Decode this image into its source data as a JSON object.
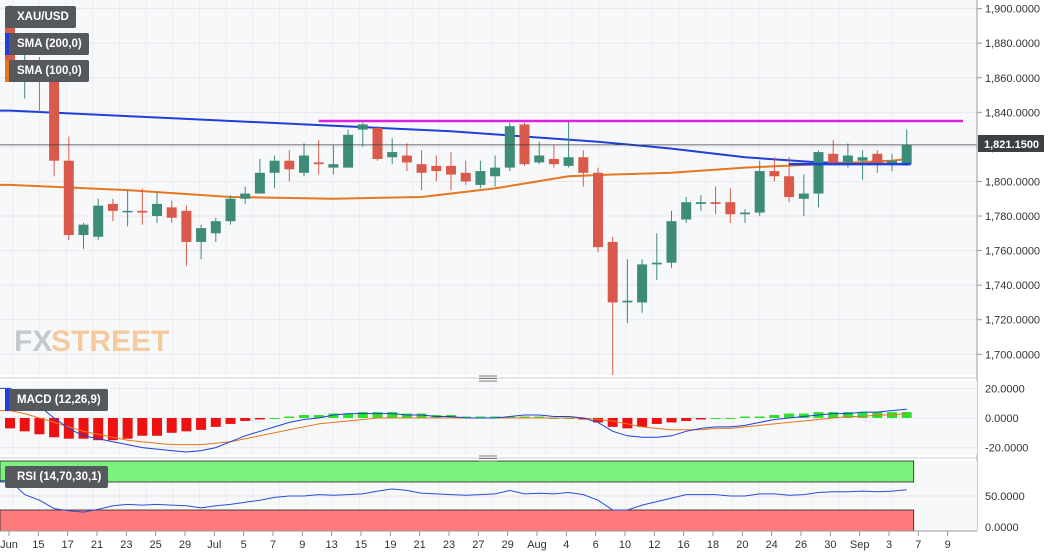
{
  "symbol": "XAU/USD",
  "indicators": {
    "sma200": {
      "label": "SMA (200,0)",
      "color": "#1f3fd6"
    },
    "sma100": {
      "label": "SMA (100,0)",
      "color": "#e8761f"
    },
    "macd": {
      "label": "MACD (12,26,9)"
    },
    "rsi": {
      "label": "RSI (14,70,30,1)"
    }
  },
  "price_tag": "1,821.1500",
  "watermark": {
    "fx": "FX",
    "street": "STREET"
  },
  "chart_data": [
    {
      "type": "candlestick",
      "title": "XAU/USD",
      "ylim": [
        1688,
        1905
      ],
      "yticks": [
        1700,
        1720,
        1740,
        1760,
        1780,
        1800,
        1820,
        1840,
        1860,
        1880,
        1900
      ],
      "ytick_labels": [
        "1,700.0000",
        "1,720.0000",
        "1,740.0000",
        "1,760.0000",
        "1,780.0000",
        "1,800.0000",
        "1,820.0000",
        "1,840.0000",
        "1,860.0000",
        "1,880.0000",
        "1,900.0000"
      ],
      "x_tick_labels": [
        "Jun",
        "15",
        "17",
        "21",
        "23",
        "25",
        "29",
        "Jul",
        "5",
        "7",
        "9",
        "13",
        "15",
        "19",
        "21",
        "23",
        "27",
        "29",
        "Aug",
        "4",
        "6",
        "10",
        "12",
        "16",
        "18",
        "20",
        "24",
        "26",
        "30",
        "Sep",
        "3",
        "7",
        "9"
      ],
      "candles": [
        {
          "o": 1900,
          "h": 1902,
          "l": 1860,
          "c": 1865
        },
        {
          "o": 1865,
          "h": 1880,
          "l": 1848,
          "c": 1870
        },
        {
          "o": 1868,
          "h": 1872,
          "l": 1840,
          "c": 1862
        },
        {
          "o": 1862,
          "h": 1862,
          "l": 1803,
          "c": 1812
        },
        {
          "o": 1812,
          "h": 1826,
          "l": 1766,
          "c": 1769
        },
        {
          "o": 1769,
          "h": 1776,
          "l": 1761,
          "c": 1775
        },
        {
          "o": 1768,
          "h": 1790,
          "l": 1766,
          "c": 1786
        },
        {
          "o": 1787,
          "h": 1790,
          "l": 1777,
          "c": 1783
        },
        {
          "o": 1783,
          "h": 1795,
          "l": 1774,
          "c": 1783
        },
        {
          "o": 1783,
          "h": 1796,
          "l": 1775,
          "c": 1782
        },
        {
          "o": 1780,
          "h": 1794,
          "l": 1776,
          "c": 1787
        },
        {
          "o": 1785,
          "h": 1789,
          "l": 1776,
          "c": 1779
        },
        {
          "o": 1783,
          "h": 1786,
          "l": 1751,
          "c": 1765
        },
        {
          "o": 1765,
          "h": 1775,
          "l": 1755,
          "c": 1773
        },
        {
          "o": 1770,
          "h": 1779,
          "l": 1765,
          "c": 1777
        },
        {
          "o": 1777,
          "h": 1792,
          "l": 1775,
          "c": 1790
        },
        {
          "o": 1790,
          "h": 1797,
          "l": 1787,
          "c": 1793
        },
        {
          "o": 1793,
          "h": 1813,
          "l": 1793,
          "c": 1805
        },
        {
          "o": 1805,
          "h": 1815,
          "l": 1796,
          "c": 1812
        },
        {
          "o": 1812,
          "h": 1818,
          "l": 1800,
          "c": 1807
        },
        {
          "o": 1805,
          "h": 1822,
          "l": 1803,
          "c": 1815
        },
        {
          "o": 1811,
          "h": 1824,
          "l": 1804,
          "c": 1810
        },
        {
          "o": 1808,
          "h": 1821,
          "l": 1804,
          "c": 1810
        },
        {
          "o": 1808,
          "h": 1830,
          "l": 1808,
          "c": 1827
        },
        {
          "o": 1830,
          "h": 1834,
          "l": 1820,
          "c": 1833
        },
        {
          "o": 1831,
          "h": 1832,
          "l": 1812,
          "c": 1813
        },
        {
          "o": 1814,
          "h": 1825,
          "l": 1810,
          "c": 1817
        },
        {
          "o": 1815,
          "h": 1822,
          "l": 1806,
          "c": 1811
        },
        {
          "o": 1810,
          "h": 1818,
          "l": 1795,
          "c": 1805
        },
        {
          "o": 1809,
          "h": 1815,
          "l": 1800,
          "c": 1806
        },
        {
          "o": 1809,
          "h": 1817,
          "l": 1795,
          "c": 1804
        },
        {
          "o": 1805,
          "h": 1812,
          "l": 1798,
          "c": 1800
        },
        {
          "o": 1798,
          "h": 1812,
          "l": 1796,
          "c": 1806
        },
        {
          "o": 1803,
          "h": 1815,
          "l": 1797,
          "c": 1808
        },
        {
          "o": 1808,
          "h": 1834,
          "l": 1806,
          "c": 1832
        },
        {
          "o": 1833,
          "h": 1834,
          "l": 1809,
          "c": 1810
        },
        {
          "o": 1811,
          "h": 1823,
          "l": 1810,
          "c": 1815
        },
        {
          "o": 1813,
          "h": 1821,
          "l": 1808,
          "c": 1810
        },
        {
          "o": 1809,
          "h": 1835,
          "l": 1808,
          "c": 1814
        },
        {
          "o": 1814,
          "h": 1818,
          "l": 1797,
          "c": 1805
        },
        {
          "o": 1805,
          "h": 1808,
          "l": 1759,
          "c": 1762
        },
        {
          "o": 1765,
          "h": 1768,
          "l": 1688,
          "c": 1730
        },
        {
          "o": 1730,
          "h": 1755,
          "l": 1718,
          "c": 1731
        },
        {
          "o": 1730,
          "h": 1755,
          "l": 1724,
          "c": 1752
        },
        {
          "o": 1752,
          "h": 1770,
          "l": 1743,
          "c": 1753
        },
        {
          "o": 1753,
          "h": 1783,
          "l": 1750,
          "c": 1777
        },
        {
          "o": 1778,
          "h": 1791,
          "l": 1776,
          "c": 1788
        },
        {
          "o": 1787,
          "h": 1792,
          "l": 1783,
          "c": 1788
        },
        {
          "o": 1788,
          "h": 1797,
          "l": 1781,
          "c": 1787
        },
        {
          "o": 1788,
          "h": 1796,
          "l": 1776,
          "c": 1781
        },
        {
          "o": 1781,
          "h": 1784,
          "l": 1776,
          "c": 1782
        },
        {
          "o": 1782,
          "h": 1812,
          "l": 1780,
          "c": 1806
        },
        {
          "o": 1806,
          "h": 1814,
          "l": 1800,
          "c": 1803
        },
        {
          "o": 1803,
          "h": 1814,
          "l": 1788,
          "c": 1791
        },
        {
          "o": 1790,
          "h": 1804,
          "l": 1780,
          "c": 1793
        },
        {
          "o": 1793,
          "h": 1818,
          "l": 1785,
          "c": 1817
        },
        {
          "o": 1816,
          "h": 1824,
          "l": 1812,
          "c": 1810
        },
        {
          "o": 1811,
          "h": 1822,
          "l": 1808,
          "c": 1815
        },
        {
          "o": 1812,
          "h": 1818,
          "l": 1801,
          "c": 1814
        },
        {
          "o": 1816,
          "h": 1818,
          "l": 1805,
          "c": 1810
        },
        {
          "o": 1810,
          "h": 1816,
          "l": 1806,
          "c": 1812
        },
        {
          "o": 1810,
          "h": 1830,
          "l": 1809,
          "c": 1821
        }
      ],
      "sma200_points": [
        [
          0,
          1841
        ],
        [
          10,
          1837
        ],
        [
          20,
          1833
        ],
        [
          30,
          1829
        ],
        [
          40,
          1823
        ],
        [
          45,
          1819
        ],
        [
          50,
          1814
        ],
        [
          55,
          1811
        ],
        [
          61,
          1810
        ]
      ],
      "sma100_points": [
        [
          0,
          1798
        ],
        [
          8,
          1795
        ],
        [
          15,
          1791
        ],
        [
          22,
          1790
        ],
        [
          28,
          1791
        ],
        [
          33,
          1796
        ],
        [
          38,
          1803
        ],
        [
          41,
          1804
        ],
        [
          45,
          1805
        ],
        [
          50,
          1808
        ],
        [
          55,
          1810
        ],
        [
          60,
          1812
        ],
        [
          61,
          1813
        ]
      ],
      "resistance": {
        "value": 1835,
        "color": "#e020e0"
      },
      "support": {
        "value": 1810,
        "color": "#1f3fd6"
      },
      "last_price": 1821.15
    },
    {
      "type": "bar",
      "title": "MACD (12,26,9)",
      "ylim": [
        -25,
        25
      ],
      "yticks": [
        20,
        0,
        -20
      ],
      "ytick_labels": [
        "20.0000",
        "0.0000",
        "-20.0000"
      ],
      "histogram": [
        -7,
        -9,
        -11,
        -13,
        -14,
        -14,
        -15,
        -15,
        -14,
        -12,
        -12,
        -10,
        -9,
        -8,
        -6,
        -4,
        -2,
        -1,
        0,
        1,
        2,
        2,
        3,
        3,
        4,
        4,
        4,
        3,
        3,
        2,
        2,
        1,
        1,
        1,
        1,
        1,
        1,
        0,
        0,
        -1,
        -3,
        -6,
        -7,
        -6,
        -4,
        -3,
        -2,
        -1,
        0,
        0,
        1,
        1,
        2,
        3,
        3,
        4,
        4,
        4,
        4,
        4,
        4,
        4
      ],
      "macd_line": [
        20,
        15,
        8,
        0,
        -7,
        -12,
        -14,
        -16,
        -18,
        -20,
        -21,
        -22,
        -23,
        -22,
        -20,
        -16,
        -12,
        -9,
        -6,
        -3,
        -1,
        0,
        2,
        3,
        3,
        3,
        3,
        2,
        2,
        1,
        1,
        0,
        0,
        0,
        1,
        2,
        2,
        1,
        1,
        0,
        -3,
        -9,
        -12,
        -13,
        -13,
        -12,
        -9,
        -7,
        -6,
        -6,
        -5,
        -3,
        -1,
        0,
        1,
        2,
        3,
        3,
        4,
        4,
        5,
        6
      ],
      "signal_line": [
        5,
        3,
        0,
        -3,
        -6,
        -9,
        -11,
        -13,
        -15,
        -16,
        -17,
        -18,
        -18,
        -18,
        -17,
        -16,
        -14,
        -12,
        -10,
        -8,
        -6,
        -4,
        -3,
        -2,
        -1,
        0,
        0,
        0,
        0,
        0,
        0,
        0,
        0,
        0,
        0,
        0,
        0,
        0,
        0,
        0,
        -1,
        -2,
        -4,
        -6,
        -7,
        -8,
        -8,
        -8,
        -7,
        -7,
        -6,
        -5,
        -4,
        -3,
        -2,
        -1,
        0,
        1,
        1,
        2,
        2,
        3
      ]
    },
    {
      "type": "line",
      "title": "RSI (14,70,30,1)",
      "ylim": [
        0,
        100
      ],
      "overbought": 70,
      "oversold": 30,
      "yticks": [
        50,
        0
      ],
      "ytick_labels": [
        "50.0000",
        "0.0000"
      ],
      "values": [
        72,
        52,
        44,
        32,
        29,
        27,
        31,
        36,
        38,
        37,
        38,
        37,
        36,
        33,
        36,
        38,
        41,
        44,
        48,
        50,
        50,
        52,
        51,
        52,
        53,
        57,
        60,
        58,
        54,
        53,
        52,
        51,
        52,
        53,
        58,
        53,
        54,
        53,
        55,
        52,
        44,
        30,
        30,
        37,
        42,
        47,
        52,
        52,
        52,
        50,
        50,
        53,
        53,
        51,
        52,
        55,
        56,
        56,
        57,
        56,
        57,
        59
      ],
      "line_color": "#2b4ed6",
      "overbought_fill": "#7cf27c",
      "oversold_fill": "#ff7a7a"
    }
  ]
}
